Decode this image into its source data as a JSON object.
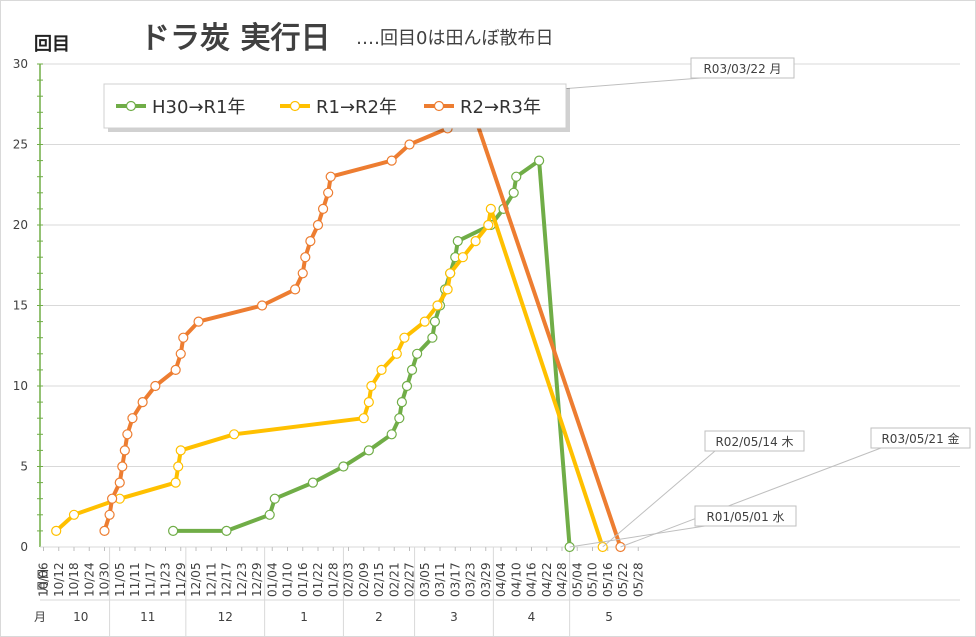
{
  "chart_data": {
    "type": "line",
    "title": "ドラ炭 実行日",
    "subtitle": "‥‥回目0は田んぼ散布日",
    "ylabel": "回目",
    "ylim": [
      0,
      30
    ],
    "yticks": [
      0,
      5,
      10,
      15,
      20,
      25,
      30
    ],
    "x_day_labels": [
      "10/06",
      "10/12",
      "10/18",
      "10/24",
      "10/30",
      "11/05",
      "11/11",
      "11/17",
      "11/23",
      "11/29",
      "12/05",
      "12/11",
      "12/17",
      "12/23",
      "12/29",
      "01/04",
      "01/10",
      "01/16",
      "01/22",
      "01/28",
      "02/03",
      "02/09",
      "02/15",
      "02/21",
      "02/27",
      "03/05",
      "03/11",
      "03/17",
      "03/23",
      "03/29",
      "04/04",
      "04/10",
      "04/16",
      "04/22",
      "04/28",
      "05/04",
      "05/10",
      "05/16",
      "05/22",
      "05/28"
    ],
    "x_label_month_day": "月日",
    "x_label_month": "月",
    "month_labels": [
      "10",
      "11",
      "12",
      "1",
      "2",
      "3",
      "4",
      "5"
    ],
    "legend_position": "top-left",
    "series": [
      {
        "name": "H30→R1年",
        "color": "#70AD47",
        "points": [
          [
            "11/26",
            1
          ],
          [
            "12/17",
            1
          ],
          [
            "01/03",
            2
          ],
          [
            "01/05",
            3
          ],
          [
            "01/20",
            4
          ],
          [
            "02/01",
            5
          ],
          [
            "02/11",
            6
          ],
          [
            "02/20",
            7
          ],
          [
            "02/23",
            8
          ],
          [
            "02/24",
            9
          ],
          [
            "02/26",
            10
          ],
          [
            "02/28",
            11
          ],
          [
            "03/02",
            12
          ],
          [
            "03/08",
            13
          ],
          [
            "03/09",
            14
          ],
          [
            "03/11",
            15
          ],
          [
            "03/13",
            16
          ],
          [
            "03/15",
            17
          ],
          [
            "03/17",
            18
          ],
          [
            "03/18",
            19
          ],
          [
            "03/31",
            20
          ],
          [
            "04/05",
            21
          ],
          [
            "04/09",
            22
          ],
          [
            "04/10",
            23
          ],
          [
            "04/19",
            24
          ],
          [
            "05/01",
            0
          ]
        ]
      },
      {
        "name": "R1→R2年",
        "color": "#FFC000",
        "points": [
          [
            "10/11",
            1
          ],
          [
            "10/18",
            2
          ],
          [
            "11/05",
            3
          ],
          [
            "11/27",
            4
          ],
          [
            "11/28",
            5
          ],
          [
            "11/29",
            6
          ],
          [
            "12/20",
            7
          ],
          [
            "02/09",
            8
          ],
          [
            "02/11",
            9
          ],
          [
            "02/12",
            10
          ],
          [
            "02/16",
            11
          ],
          [
            "02/22",
            12
          ],
          [
            "02/25",
            13
          ],
          [
            "03/05",
            14
          ],
          [
            "03/10",
            15
          ],
          [
            "03/14",
            16
          ],
          [
            "03/15",
            17
          ],
          [
            "03/20",
            18
          ],
          [
            "03/25",
            19
          ],
          [
            "03/30",
            20
          ],
          [
            "03/31",
            21
          ],
          [
            "05/14",
            0
          ]
        ]
      },
      {
        "name": "R2→R3年",
        "color": "#ED7D31",
        "points": [
          [
            "10/30",
            1
          ],
          [
            "11/01",
            2
          ],
          [
            "11/02",
            3
          ],
          [
            "11/05",
            4
          ],
          [
            "11/06",
            5
          ],
          [
            "11/07",
            6
          ],
          [
            "11/08",
            7
          ],
          [
            "11/10",
            8
          ],
          [
            "11/14",
            9
          ],
          [
            "11/19",
            10
          ],
          [
            "11/27",
            11
          ],
          [
            "11/29",
            12
          ],
          [
            "11/30",
            13
          ],
          [
            "12/06",
            14
          ],
          [
            "12/31",
            15
          ],
          [
            "01/13",
            16
          ],
          [
            "01/16",
            17
          ],
          [
            "01/17",
            18
          ],
          [
            "01/19",
            19
          ],
          [
            "01/22",
            20
          ],
          [
            "01/24",
            21
          ],
          [
            "01/26",
            22
          ],
          [
            "01/27",
            23
          ],
          [
            "02/20",
            24
          ],
          [
            "02/27",
            25
          ],
          [
            "03/14",
            26
          ],
          [
            "03/18",
            27
          ],
          [
            "03/22",
            28
          ],
          [
            "05/21",
            0
          ]
        ]
      }
    ],
    "annotations": [
      "R03/03/22 月",
      "R02/05/14 木",
      "R03/05/21 金",
      "R01/05/01 水"
    ]
  }
}
